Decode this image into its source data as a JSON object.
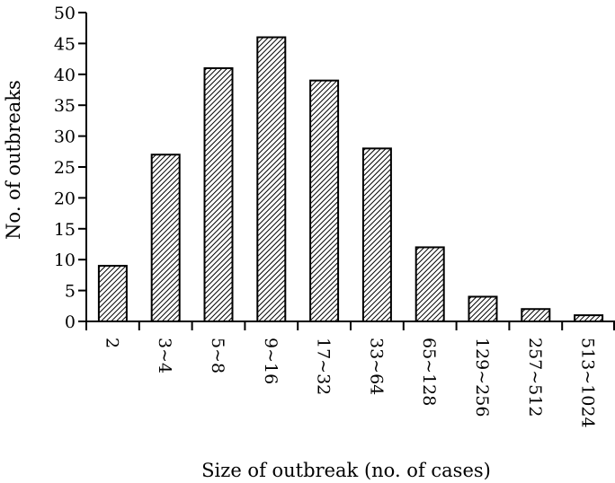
{
  "chart_data": {
    "type": "bar",
    "categories": [
      "2",
      "3~4",
      "5~8",
      "9~16",
      "17~32",
      "33~64",
      "65~128",
      "129~256",
      "257~512",
      "513~1024"
    ],
    "values": [
      9,
      27,
      41,
      46,
      39,
      28,
      12,
      4,
      2,
      1
    ],
    "xlabel": "Size of outbreak (no. of cases)",
    "ylabel": "No. of outbreaks",
    "ylim": [
      0,
      50
    ],
    "yticks": [
      0,
      5,
      10,
      15,
      20,
      25,
      30,
      35,
      40,
      45,
      50
    ],
    "grid": false,
    "bar_fill": "diagonal-hatch",
    "colors": {
      "bar_stroke": "#000000",
      "hatch": "#000000",
      "background": "#ffffff"
    }
  }
}
